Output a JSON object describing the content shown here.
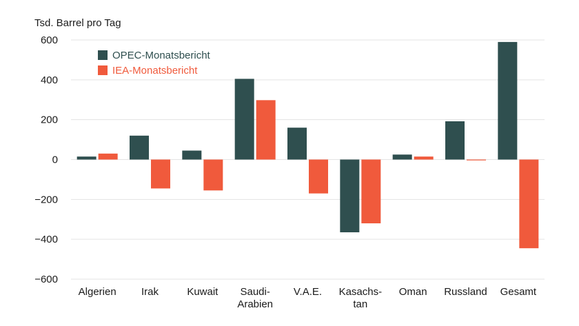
{
  "chart_data": {
    "type": "bar",
    "ylabel": "Tsd. Barrel pro Tag",
    "ylim": [
      -600,
      600
    ],
    "yticks": [
      600,
      400,
      200,
      0,
      -200,
      -400,
      -600
    ],
    "ytick_labels": [
      "600",
      "400",
      "200",
      "0",
      "−200",
      "−400",
      "−600"
    ],
    "grid": true,
    "legend_position": "top-left",
    "categories": [
      [
        "Algerien"
      ],
      [
        "Irak"
      ],
      [
        "Kuwait"
      ],
      [
        "Saudi-",
        "Arabien"
      ],
      [
        "V.A.E."
      ],
      [
        "Kasachs-",
        "tan"
      ],
      [
        "Oman"
      ],
      [
        "Russland"
      ],
      [
        "Gesamt"
      ]
    ],
    "series": [
      {
        "name": "OPEC-Monatsbericht",
        "color": "#2f4f4f",
        "values": [
          15,
          120,
          45,
          405,
          160,
          -365,
          25,
          192,
          590
        ]
      },
      {
        "name": "IEA-Monatsbericht",
        "color": "#f05a3c",
        "values": [
          30,
          -145,
          -155,
          298,
          -170,
          -320,
          15,
          -3,
          -445
        ]
      }
    ]
  }
}
